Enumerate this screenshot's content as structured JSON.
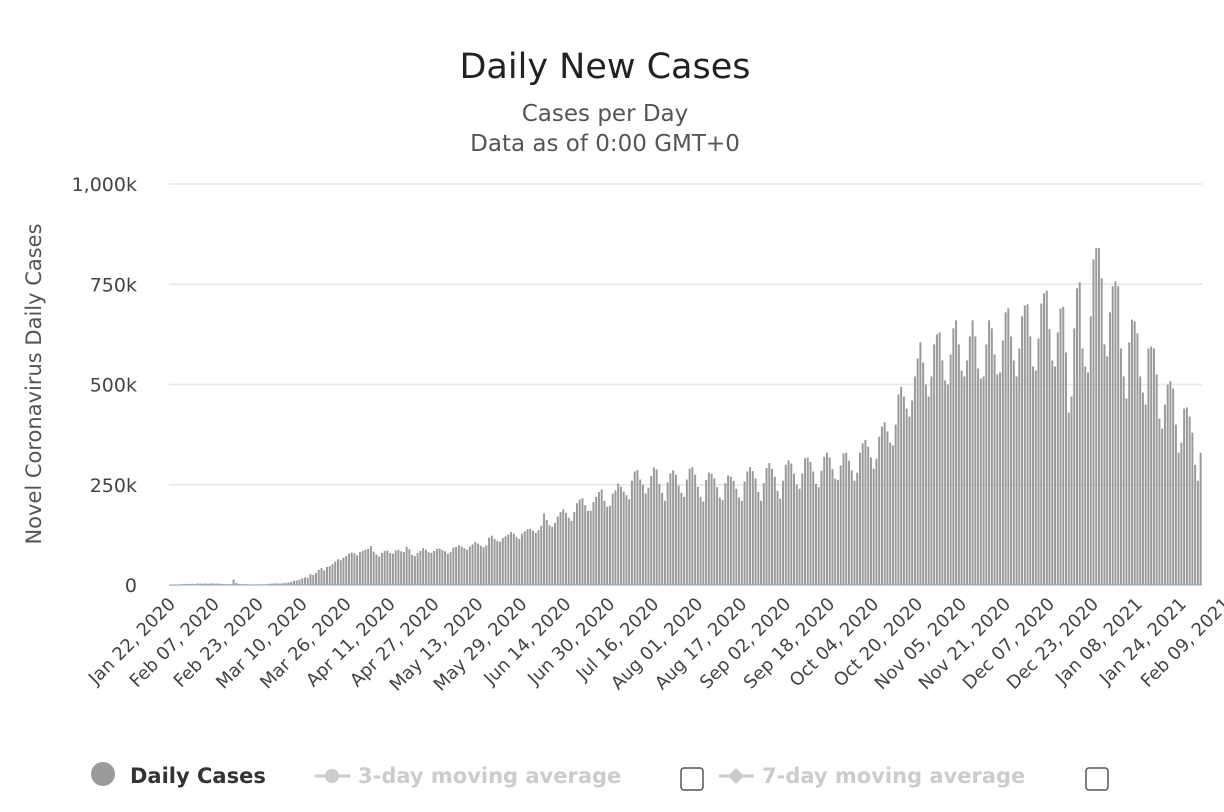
{
  "chart_data": {
    "type": "bar",
    "title": "Daily New Cases",
    "subtitle_line1": "Cases per Day",
    "subtitle_line2": "Data as of 0:00 GMT+0",
    "ylabel": "Novel Coronavirus Daily Cases",
    "xlabel": "",
    "ylim": [
      0,
      1000000
    ],
    "y_ticks": [
      0,
      250000,
      500000,
      750000,
      1000000
    ],
    "y_tick_labels": [
      "0",
      "250k",
      "500k",
      "750k",
      "1,000k"
    ],
    "x_start": "2020-01-22",
    "x_ticks": [
      "Jan 22, 2020",
      "Feb 07, 2020",
      "Feb 23, 2020",
      "Mar 10, 2020",
      "Mar 26, 2020",
      "Apr 11, 2020",
      "Apr 27, 2020",
      "May 13, 2020",
      "May 29, 2020",
      "Jun 14, 2020",
      "Jun 30, 2020",
      "Jul 16, 2020",
      "Aug 01, 2020",
      "Aug 17, 2020",
      "Sep 02, 2020",
      "Sep 18, 2020",
      "Oct 04, 2020",
      "Oct 20, 2020",
      "Nov 05, 2020",
      "Nov 21, 2020",
      "Dec 07, 2020",
      "Dec 23, 2020",
      "Jan 08, 2021",
      "Jan 24, 2021",
      "Feb 09, 2021"
    ],
    "grid": true,
    "legend_position": "bottom",
    "bar_color": "#9a9a9a",
    "series": [
      {
        "name": "Daily Cases",
        "values": [
          600,
          300,
          800,
          900,
          1800,
          2100,
          2600,
          2800,
          3100,
          2000,
          3900,
          3800,
          3300,
          3700,
          3100,
          4000,
          3900,
          3700,
          3100,
          2700,
          2600,
          2100,
          2000,
          14000,
          5000,
          2400,
          2100,
          2000,
          1900,
          1100,
          900,
          1300,
          1500,
          1300,
          1600,
          2100,
          3000,
          3500,
          3900,
          4300,
          3700,
          4600,
          5300,
          6200,
          8300,
          10500,
          11000,
          13500,
          16500,
          19000,
          17500,
          27000,
          25000,
          30000,
          38000,
          42000,
          36000,
          45000,
          47000,
          52000,
          58000,
          64000,
          62000,
          68000,
          72000,
          78000,
          81000,
          79000,
          74000,
          82000,
          85000,
          88000,
          90000,
          97000,
          83000,
          76000,
          71000,
          80000,
          85000,
          86000,
          80000,
          78000,
          86000,
          88000,
          84000,
          82000,
          95000,
          89000,
          75000,
          72000,
          80000,
          85000,
          92000,
          88000,
          82000,
          80000,
          85000,
          90000,
          91000,
          87000,
          84000,
          78000,
          82000,
          93000,
          95000,
          99000,
          96000,
          92000,
          88000,
          96000,
          101000,
          107000,
          103000,
          98000,
          94000,
          99000,
          118000,
          123000,
          115000,
          110000,
          108000,
          117000,
          121000,
          126000,
          132000,
          128000,
          120000,
          115000,
          128000,
          134000,
          139000,
          140000,
          135000,
          130000,
          137000,
          148000,
          178000,
          162000,
          149000,
          145000,
          155000,
          171000,
          182000,
          189000,
          180000,
          168000,
          160000,
          182000,
          204000,
          213000,
          216000,
          199000,
          185000,
          185000,
          207000,
          220000,
          232000,
          238000,
          210000,
          195000,
          198000,
          228000,
          236000,
          253000,
          245000,
          233000,
          224000,
          214000,
          260000,
          283000,
          287000,
          263000,
          250000,
          228000,
          243000,
          272000,
          293000,
          288000,
          252000,
          230000,
          210000,
          256000,
          278000,
          286000,
          275000,
          248000,
          230000,
          220000,
          263000,
          290000,
          294000,
          275000,
          245000,
          220000,
          208000,
          262000,
          280000,
          277000,
          266000,
          244000,
          218000,
          212000,
          254000,
          273000,
          270000,
          260000,
          240000,
          218000,
          210000,
          258000,
          283000,
          294000,
          284000,
          266000,
          232000,
          210000,
          254000,
          292000,
          304000,
          290000,
          270000,
          235000,
          215000,
          260000,
          300000,
          311000,
          303000,
          278000,
          250000,
          240000,
          278000,
          316000,
          318000,
          307000,
          283000,
          252000,
          244000,
          285000,
          320000,
          330000,
          318000,
          289000,
          265000,
          262000,
          298000,
          328000,
          330000,
          310000,
          286000,
          260000,
          280000,
          330000,
          353000,
          362000,
          345000,
          318000,
          290000,
          315000,
          370000,
          395000,
          406000,
          383000,
          355000,
          348000,
          400000,
          475000,
          494000,
          470000,
          440000,
          420000,
          460000,
          520000,
          565000,
          605000,
          555000,
          500000,
          470000,
          520000,
          600000,
          625000,
          630000,
          560000,
          510000,
          500000,
          575000,
          640000,
          660000,
          600000,
          535000,
          520000,
          560000,
          620000,
          660000,
          620000,
          540000,
          515000,
          520000,
          600000,
          660000,
          640000,
          575000,
          525000,
          530000,
          610000,
          680000,
          690000,
          620000,
          560000,
          520000,
          590000,
          670000,
          697000,
          700000,
          620000,
          545000,
          535000,
          615000,
          702000,
          727000,
          734000,
          638000,
          560000,
          545000,
          630000,
          690000,
          694000,
          580000,
          430000,
          470000,
          640000,
          740000,
          755000,
          590000,
          545000,
          530000,
          670000,
          812000,
          841000,
          840000,
          765000,
          600000,
          570000,
          680000,
          745000,
          757000,
          745000,
          590000,
          520000,
          465000,
          605000,
          662000,
          657000,
          627000,
          520000,
          480000,
          450000,
          590000,
          595000,
          590000,
          525000,
          415000,
          390000,
          450000,
          500000,
          508000,
          490000,
          400000,
          330000,
          355000,
          440000,
          443000,
          420000,
          380000,
          300000,
          260000,
          330000
        ]
      }
    ]
  },
  "legend": {
    "items": [
      {
        "label": "Daily Cases",
        "active": true,
        "color": "#9a9a9a",
        "icon": "circle-marker-icon"
      },
      {
        "label": "3-day moving average",
        "active": false,
        "color": "#cccccc",
        "icon": "line-circle-marker-icon"
      },
      {
        "label": "7-day moving average",
        "active": false,
        "color": "#cccccc",
        "icon": "line-diamond-marker-icon"
      }
    ]
  }
}
